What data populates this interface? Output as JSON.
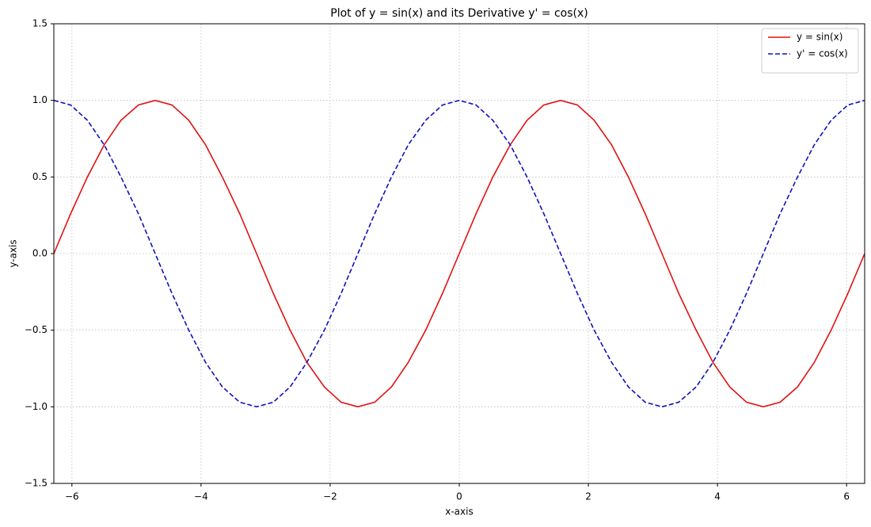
{
  "chart_data": {
    "type": "line",
    "title": "Plot of y = sin(x) and its Derivative y' = cos(x)",
    "x_label": "x-axis",
    "y_label": "y-axis",
    "x": [
      -6.28,
      -6.02,
      -5.76,
      -5.5,
      -5.24,
      -4.97,
      -4.71,
      -4.45,
      -4.19,
      -3.93,
      -3.67,
      -3.4,
      -3.14,
      -2.88,
      -2.62,
      -2.36,
      -2.09,
      -1.83,
      -1.57,
      -1.31,
      -1.05,
      -0.79,
      -0.52,
      -0.26,
      0,
      0.26,
      0.52,
      0.79,
      1.05,
      1.31,
      1.57,
      1.83,
      2.09,
      2.36,
      2.62,
      2.88,
      3.14,
      3.4,
      3.67,
      3.93,
      4.19,
      4.45,
      4.71,
      4.97,
      5.24,
      5.5,
      5.76,
      6.02,
      6.28
    ],
    "series": [
      {
        "name": "y = sin(x)",
        "color": "#e01010",
        "linestyle": "solid",
        "values": [
          0,
          0.26,
          0.5,
          0.71,
          0.87,
          0.97,
          1,
          0.97,
          0.87,
          0.71,
          0.5,
          0.26,
          0,
          -0.26,
          -0.5,
          -0.71,
          -0.87,
          -0.97,
          -1,
          -0.97,
          -0.87,
          -0.71,
          -0.5,
          -0.26,
          0,
          0.26,
          0.5,
          0.71,
          0.87,
          0.97,
          1,
          0.97,
          0.87,
          0.71,
          0.5,
          0.26,
          0,
          -0.26,
          -0.5,
          -0.71,
          -0.87,
          -0.97,
          -1,
          -0.97,
          -0.87,
          -0.71,
          -0.5,
          -0.26,
          0
        ]
      },
      {
        "name": "y' = cos(x)",
        "color": "#1010c0",
        "linestyle": "dashed",
        "values": [
          1,
          0.97,
          0.87,
          0.71,
          0.5,
          0.26,
          0,
          -0.26,
          -0.5,
          -0.71,
          -0.87,
          -0.97,
          -1,
          -0.97,
          -0.87,
          -0.71,
          -0.5,
          -0.26,
          0,
          0.26,
          0.5,
          0.71,
          0.87,
          0.97,
          1,
          0.97,
          0.87,
          0.71,
          0.5,
          0.26,
          0,
          -0.26,
          -0.5,
          -0.71,
          -0.87,
          -0.97,
          -1,
          -0.97,
          -0.87,
          -0.71,
          -0.5,
          -0.26,
          0,
          0.26,
          0.5,
          0.71,
          0.87,
          0.97,
          1
        ]
      }
    ],
    "xlim": [
      -6.28,
      6.28
    ],
    "ylim": [
      -1.5,
      1.5
    ],
    "xticks": [
      {
        "value": -6,
        "label": "−6"
      },
      {
        "value": -4,
        "label": "−4"
      },
      {
        "value": -2,
        "label": "−2"
      },
      0,
      2,
      4,
      6
    ],
    "yticks": [
      {
        "value": -1.5,
        "label": "−1.5"
      },
      {
        "value": -1,
        "label": "−1.0"
      },
      {
        "value": -0.5,
        "label": "−0.5"
      },
      {
        "value": 0,
        "label": "0.0"
      },
      {
        "value": 0.5,
        "label": "0.5"
      },
      {
        "value": 1,
        "label": "1.0"
      },
      {
        "value": 1.5,
        "label": "1.5"
      }
    ],
    "grid": true,
    "legend": "upper right"
  }
}
